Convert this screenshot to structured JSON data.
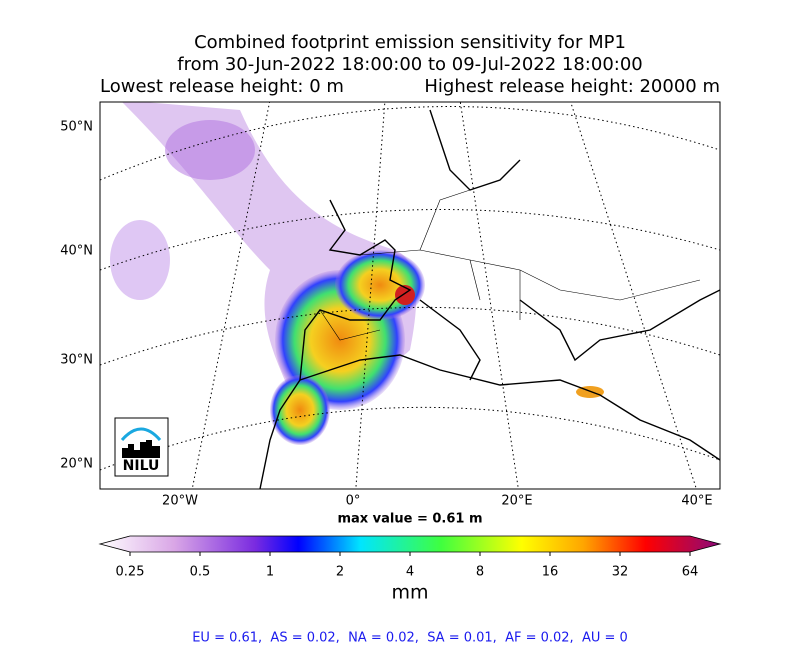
{
  "title_lines": [
    "Combined footprint emission sensitivity for MP1",
    "from 30-Jun-2022 18:00:00 to 09-Jul-2022 18:00:00"
  ],
  "release": {
    "lowest": "Lowest release height: 0 m",
    "highest": "Highest release height: 20000 m"
  },
  "map": {
    "lat_labels": [
      "50°N",
      "40°N",
      "30°N",
      "20°N"
    ],
    "lon_labels": [
      "20°W",
      "0°",
      "20°E",
      "40°E"
    ],
    "max_value": "max value = 0.61 m",
    "logo": "NILU"
  },
  "colorbar": {
    "ticks": [
      0.25,
      0.5,
      1,
      2,
      4,
      8,
      16,
      32,
      64
    ],
    "lim": [
      0.25,
      64
    ],
    "scale": "log",
    "label": "mm"
  },
  "footer": "EU = 0.61,  AS = 0.02,  NA = 0.02,  SA = 0.01,  AF = 0.02,  AU = 0"
}
